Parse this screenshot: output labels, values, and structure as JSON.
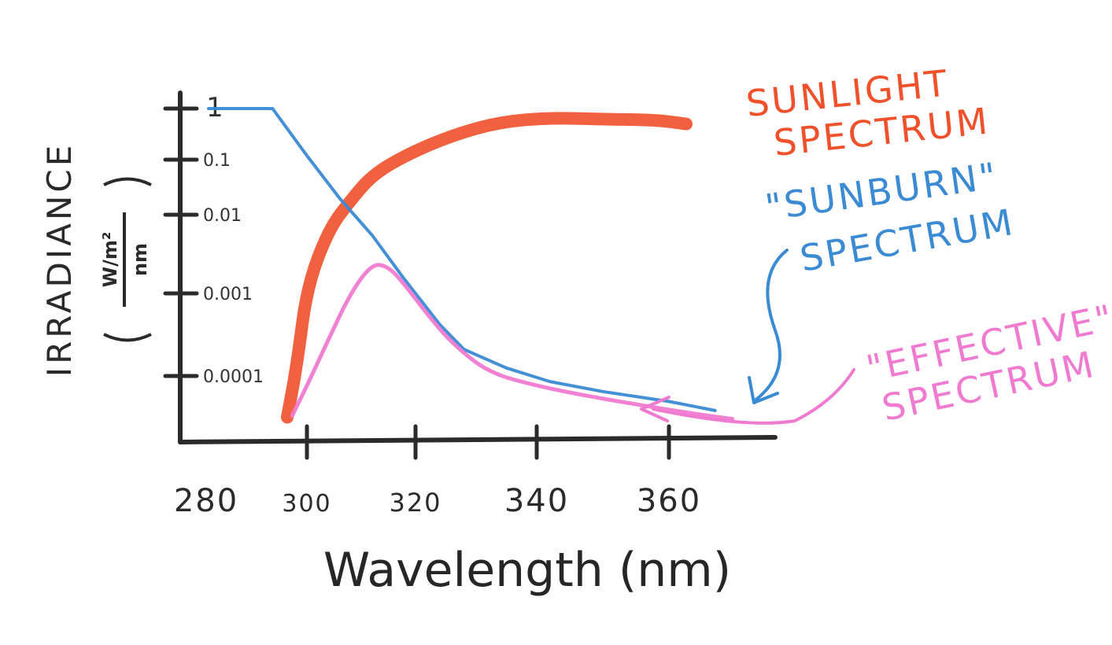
{
  "chart_data": {
    "type": "line",
    "xlabel": "Wavelength (nm)",
    "ylabel": "IRRADIANCE",
    "ylabel_unit_numerator": "W/m²",
    "ylabel_unit_denominator": "nm",
    "x_ticks": [
      "280",
      "300",
      "320",
      "340",
      "360"
    ],
    "y_ticks": [
      "1",
      "0.1",
      "0.01",
      "0.001",
      "0.0001"
    ],
    "xlim": [
      280,
      375
    ],
    "ylim_log": [
      1e-05,
      1
    ],
    "grid": false,
    "series": [
      {
        "name": "SUNLIGHT SPECTRUM",
        "color": "#f0502a",
        "x": [
          296,
          298,
          300,
          304,
          308,
          312,
          318,
          326,
          334,
          342,
          350,
          358,
          363
        ],
        "y": [
          1.2e-05,
          0.00014,
          0.0012,
          0.0065,
          0.018,
          0.052,
          0.12,
          0.3,
          0.55,
          0.66,
          0.62,
          0.6,
          0.5
        ]
      },
      {
        "name": "\"SUNBURN\" SPECTRUM",
        "color": "#3a8ad4",
        "x": [
          280,
          293,
          300,
          306,
          312,
          318,
          324,
          328,
          335,
          342,
          350,
          360,
          368
        ],
        "y": [
          1,
          1,
          0.12,
          0.02,
          0.0055,
          0.0015,
          0.00042,
          0.00021,
          0.000125,
          7.5e-05,
          4.5e-05,
          2.7e-05,
          1.7e-05
        ]
      },
      {
        "name": "\"EFFECTIVE\" SPECTRUM",
        "color": "#f07ad0",
        "x": [
          297,
          300,
          304,
          308,
          312,
          315,
          318,
          322,
          326,
          332,
          340,
          348,
          356,
          365,
          371
        ],
        "y": [
          1.3e-05,
          6e-05,
          0.00028,
          0.001,
          0.0024,
          0.0022,
          0.0013,
          0.00055,
          0.00025,
          0.00011,
          6e-05,
          3.5e-05,
          2.2e-05,
          1.4e-05,
          1.1e-05
        ]
      }
    ]
  },
  "annotations": {
    "sunlight_line1": "SUNLIGHT",
    "sunlight_line2": "SPECTRUM",
    "sunburn_line1": "\"SUNBURN\"",
    "sunburn_line2": "SPECTRUM",
    "effective_line1": "\"EFFECTIVE\"",
    "effective_line2": "SPECTRUM"
  }
}
